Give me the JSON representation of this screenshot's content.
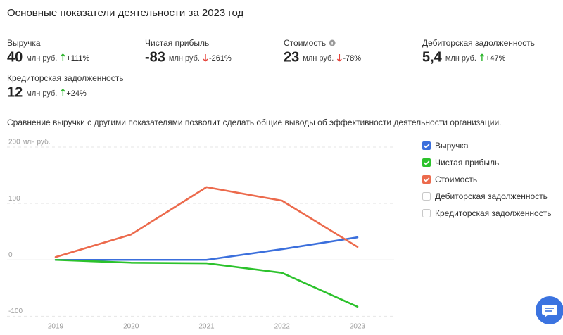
{
  "header": {
    "title": "Основные показатели деятельности за 2023 год"
  },
  "metrics": [
    {
      "label": "Выручка",
      "value": "40",
      "unit": "млн руб.",
      "change": "+111%",
      "trend": "up"
    },
    {
      "label": "Чистая прибыль",
      "value": "-83",
      "unit": "млн руб.",
      "change": "-261%",
      "trend": "down"
    },
    {
      "label": "Стоимость",
      "value": "23",
      "unit": "млн руб.",
      "change": "-78%",
      "trend": "down",
      "info": true
    },
    {
      "label": "Дебиторская задолженность",
      "value": "5,4",
      "unit": "млн руб.",
      "change": "+47%",
      "trend": "up"
    },
    {
      "label": "Кредиторская задолженность",
      "value": "12",
      "unit": "млн руб.",
      "change": "+24%",
      "trend": "up"
    }
  ],
  "description": "Сравнение выручки с другими показателями позволит сделать общие выводы об эффективности деятельности организации.",
  "chart_data": {
    "type": "line",
    "categories": [
      "2019",
      "2020",
      "2021",
      "2022",
      "2023"
    ],
    "series": [
      {
        "name": "Выручка",
        "color": "#3b6fdc",
        "visible": true,
        "values": [
          0,
          0,
          0,
          19,
          40
        ]
      },
      {
        "name": "Чистая прибыль",
        "color": "#2cc22c",
        "visible": true,
        "values": [
          0,
          -5,
          -6,
          -23,
          -83
        ]
      },
      {
        "name": "Стоимость",
        "color": "#ec6a4c",
        "visible": true,
        "values": [
          5,
          45,
          129,
          105,
          23
        ]
      },
      {
        "name": "Дебиторская задолженность",
        "visible": false,
        "values": [
          null,
          null,
          null,
          null,
          null
        ]
      },
      {
        "name": "Кредиторская задолженность",
        "visible": false,
        "values": [
          null,
          null,
          null,
          null,
          null
        ]
      }
    ],
    "ylim": [
      -112,
      200
    ],
    "yticks": [
      {
        "value": 200,
        "label": "200 млн руб."
      },
      100,
      0,
      -100
    ],
    "grid": true,
    "legend": "right"
  }
}
